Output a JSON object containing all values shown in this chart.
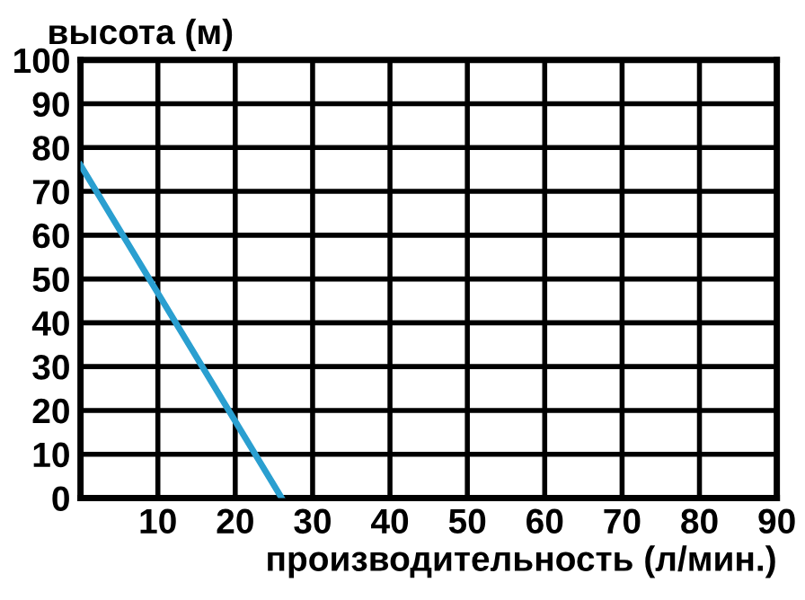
{
  "chart_data": {
    "type": "line",
    "ylabel": "высота (м)",
    "xlabel": "производительность (л/мин.)",
    "series": [
      {
        "color": "#2a9fd0",
        "x": [
          0,
          26
        ],
        "values": [
          76,
          0
        ]
      }
    ],
    "xlim": [
      0,
      90
    ],
    "xticks": [
      {
        "value": 0,
        "label": null
      },
      10,
      20,
      30,
      40,
      50,
      60,
      70,
      80,
      90
    ],
    "ylim": [
      0,
      100
    ],
    "yticks": [
      0,
      10,
      20,
      30,
      40,
      50,
      60,
      70,
      80,
      90,
      100
    ],
    "grid": true,
    "marker": "none",
    "line_style": "solid"
  }
}
